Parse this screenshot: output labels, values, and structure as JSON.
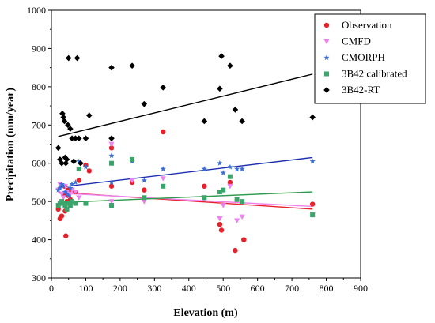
{
  "chart_data": {
    "type": "scatter",
    "xlabel": "Elevation (m)",
    "ylabel": "Precipitation (mm/year)",
    "xlim": [
      0,
      900
    ],
    "ylim": [
      300,
      1000
    ],
    "xticks": [
      "0",
      "100",
      "200",
      "300",
      "400",
      "500",
      "600",
      "700",
      "800",
      "900"
    ],
    "yticks": [
      "300",
      "400",
      "500",
      "600",
      "700",
      "800",
      "900",
      "1000"
    ],
    "legend_position": "top-right",
    "series": [
      {
        "name": "Observation",
        "color": "#e8202a",
        "marker": "circle",
        "points": [
          [
            20,
            480
          ],
          [
            25,
            455
          ],
          [
            30,
            462
          ],
          [
            32,
            498
          ],
          [
            35,
            520
          ],
          [
            38,
            540
          ],
          [
            40,
            475
          ],
          [
            42,
            410
          ],
          [
            45,
            500
          ],
          [
            48,
            530
          ],
          [
            50,
            515
          ],
          [
            55,
            505
          ],
          [
            60,
            530
          ],
          [
            70,
            525
          ],
          [
            80,
            555
          ],
          [
            100,
            595
          ],
          [
            110,
            580
          ],
          [
            175,
            540
          ],
          [
            175,
            640
          ],
          [
            235,
            550
          ],
          [
            270,
            530
          ],
          [
            325,
            682
          ],
          [
            445,
            540
          ],
          [
            490,
            440
          ],
          [
            495,
            425
          ],
          [
            520,
            550
          ],
          [
            535,
            372
          ],
          [
            560,
            400
          ],
          [
            760,
            493
          ]
        ],
        "trend": [
          [
            20,
            524
          ],
          [
            760,
            480
          ]
        ]
      },
      {
        "name": "CMFD",
        "color": "#ee82ee",
        "marker": "triangle-down",
        "points": [
          [
            20,
            530
          ],
          [
            25,
            545
          ],
          [
            30,
            520
          ],
          [
            35,
            510
          ],
          [
            40,
            540
          ],
          [
            45,
            525
          ],
          [
            50,
            515
          ],
          [
            55,
            520
          ],
          [
            60,
            530
          ],
          [
            70,
            525
          ],
          [
            80,
            510
          ],
          [
            175,
            500
          ],
          [
            175,
            650
          ],
          [
            235,
            555
          ],
          [
            270,
            500
          ],
          [
            325,
            560
          ],
          [
            445,
            510
          ],
          [
            490,
            455
          ],
          [
            500,
            490
          ],
          [
            520,
            540
          ],
          [
            540,
            450
          ],
          [
            555,
            460
          ],
          [
            760,
            465
          ]
        ],
        "trend": [
          [
            20,
            522
          ],
          [
            760,
            487
          ]
        ]
      },
      {
        "name": "CMORPH",
        "color": "#3a6fd8",
        "marker": "star",
        "points": [
          [
            20,
            530
          ],
          [
            25,
            535
          ],
          [
            30,
            545
          ],
          [
            35,
            540
          ],
          [
            40,
            525
          ],
          [
            45,
            520
          ],
          [
            50,
            515
          ],
          [
            55,
            535
          ],
          [
            60,
            545
          ],
          [
            70,
            550
          ],
          [
            80,
            605
          ],
          [
            100,
            590
          ],
          [
            175,
            620
          ],
          [
            175,
            550
          ],
          [
            235,
            605
          ],
          [
            270,
            555
          ],
          [
            325,
            585
          ],
          [
            445,
            585
          ],
          [
            490,
            600
          ],
          [
            500,
            575
          ],
          [
            520,
            590
          ],
          [
            540,
            585
          ],
          [
            555,
            585
          ],
          [
            760,
            605
          ]
        ],
        "trend": [
          [
            20,
            537
          ],
          [
            760,
            615
          ]
        ]
      },
      {
        "name": "3B42  calibrated",
        "color": "#3aa56a",
        "marker": "square",
        "points": [
          [
            20,
            490
          ],
          [
            25,
            495
          ],
          [
            30,
            500
          ],
          [
            35,
            495
          ],
          [
            40,
            490
          ],
          [
            45,
            480
          ],
          [
            50,
            495
          ],
          [
            55,
            490
          ],
          [
            60,
            500
          ],
          [
            70,
            495
          ],
          [
            80,
            585
          ],
          [
            100,
            495
          ],
          [
            175,
            490
          ],
          [
            175,
            600
          ],
          [
            235,
            610
          ],
          [
            270,
            510
          ],
          [
            325,
            540
          ],
          [
            445,
            510
          ],
          [
            490,
            525
          ],
          [
            500,
            530
          ],
          [
            520,
            565
          ],
          [
            540,
            505
          ],
          [
            555,
            500
          ],
          [
            760,
            465
          ]
        ],
        "trend": [
          [
            20,
            497
          ],
          [
            760,
            525
          ]
        ]
      },
      {
        "name": "3B42-RT",
        "color": "#000000",
        "marker": "diamond",
        "points": [
          [
            20,
            640
          ],
          [
            25,
            610
          ],
          [
            30,
            600
          ],
          [
            32,
            730
          ],
          [
            35,
            720
          ],
          [
            38,
            710
          ],
          [
            40,
            615
          ],
          [
            42,
            600
          ],
          [
            45,
            610
          ],
          [
            48,
            700
          ],
          [
            50,
            875
          ],
          [
            55,
            690
          ],
          [
            60,
            665
          ],
          [
            65,
            605
          ],
          [
            70,
            665
          ],
          [
            75,
            875
          ],
          [
            80,
            665
          ],
          [
            85,
            600
          ],
          [
            100,
            665
          ],
          [
            110,
            725
          ],
          [
            175,
            850
          ],
          [
            175,
            665
          ],
          [
            235,
            855
          ],
          [
            270,
            755
          ],
          [
            325,
            798
          ],
          [
            445,
            710
          ],
          [
            490,
            795
          ],
          [
            495,
            880
          ],
          [
            520,
            855
          ],
          [
            535,
            740
          ],
          [
            555,
            710
          ],
          [
            760,
            720
          ]
        ],
        "trend": [
          [
            20,
            670
          ],
          [
            760,
            833
          ]
        ]
      }
    ]
  }
}
